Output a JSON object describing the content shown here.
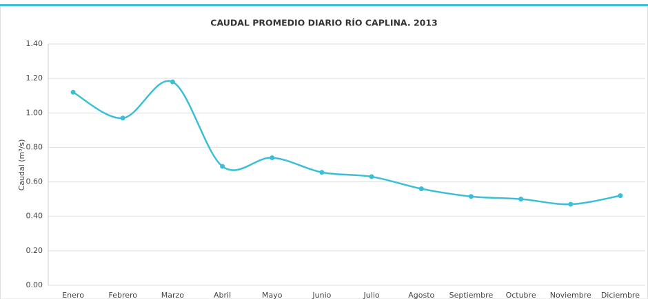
{
  "chart_data": {
    "type": "line",
    "title": "CAUDAL PROMEDIO DIARIO RÍO CAPLINA. 2013",
    "y_label": "Caudal (m³/s)",
    "categories": [
      "Enero",
      "Febrero",
      "Marzo",
      "Abril",
      "Mayo",
      "Junio",
      "Julio",
      "Agosto",
      "Septiembre",
      "Octubre",
      "Noviembre",
      "Diciembre"
    ],
    "series": [
      {
        "name": "Caudal",
        "color": "#3bbfd6",
        "values": [
          1.12,
          0.97,
          1.18,
          0.69,
          0.74,
          0.655,
          0.63,
          0.56,
          0.515,
          0.5,
          0.47,
          0.52
        ]
      }
    ],
    "ylim": [
      0,
      1.4
    ],
    "yticks": [
      {
        "value": 0,
        "label": "0.00"
      },
      {
        "value": 0.2,
        "label": "0.20"
      },
      {
        "value": 0.4,
        "label": "0.40"
      },
      {
        "value": 0.6,
        "label": "0.60"
      },
      {
        "value": 0.8,
        "label": "0.80"
      },
      {
        "value": 1.0,
        "label": "1.00"
      },
      {
        "value": 1.2,
        "label": "1.20"
      },
      {
        "value": 1.4,
        "label": "1.40"
      }
    ],
    "grid": true,
    "smooth": true
  }
}
